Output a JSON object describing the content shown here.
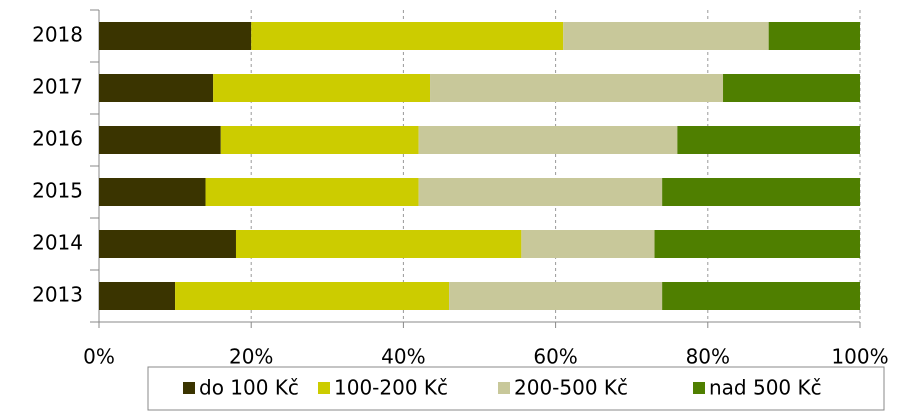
{
  "chart_data": {
    "type": "stacked-bar-horizontal",
    "categories": [
      "2018",
      "2017",
      "2016",
      "2015",
      "2014",
      "2013"
    ],
    "series": [
      {
        "name": "do 100 Kč",
        "color": "#3a3400",
        "values": [
          20,
          15,
          16,
          14,
          18,
          10
        ]
      },
      {
        "name": "100-200 Kč",
        "color": "#cccc00",
        "values": [
          41,
          28.5,
          26,
          28,
          37.5,
          36
        ]
      },
      {
        "name": "200-500 Kč",
        "color": "#c8c89a",
        "values": [
          27,
          38.5,
          34,
          32,
          17.5,
          28
        ]
      },
      {
        "name": "nad 500 Kč",
        "color": "#4f7f00",
        "values": [
          12,
          18,
          24,
          26,
          27,
          26
        ]
      }
    ],
    "xlim": [
      0,
      100
    ],
    "xticks": [
      {
        "value": 0,
        "label": "0%"
      },
      {
        "value": 20,
        "label": "20%"
      },
      {
        "value": 40,
        "label": "40%"
      },
      {
        "value": 60,
        "label": "60%"
      },
      {
        "value": 80,
        "label": "80%"
      },
      {
        "value": 100,
        "label": "100%"
      }
    ],
    "grid": true,
    "legend": "bottom"
  }
}
